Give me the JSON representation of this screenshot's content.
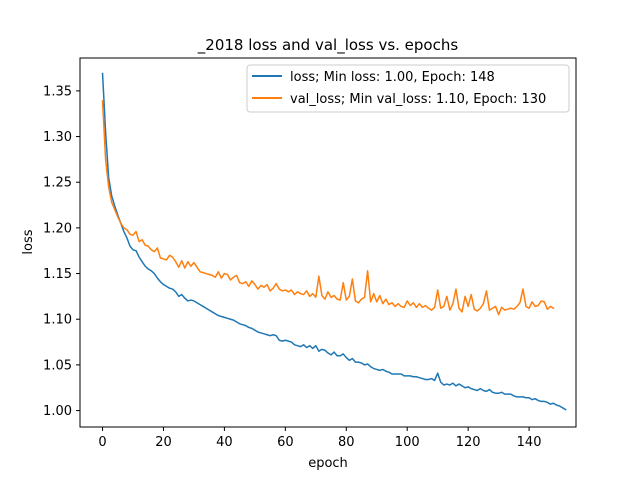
{
  "chart_data": {
    "type": "line",
    "title": "_2018 loss and val_loss vs. epochs",
    "xlabel": "epoch",
    "ylabel": "loss",
    "xlim": [
      -7.4,
      155.4
    ],
    "ylim": [
      0.982,
      1.386
    ],
    "xticks": [
      0,
      20,
      40,
      60,
      80,
      100,
      120,
      140
    ],
    "yticks": [
      1.0,
      1.05,
      1.1,
      1.15,
      1.2,
      1.25,
      1.3,
      1.35
    ],
    "ytick_labels": [
      "1.00",
      "1.05",
      "1.10",
      "1.15",
      "1.20",
      "1.25",
      "1.30",
      "1.35"
    ],
    "grid": false,
    "legend_position": "upper right",
    "series": [
      {
        "name": "loss; Min loss: 1.00, Epoch: 148",
        "color": "#1f77b4",
        "values": [
          1.369,
          1.305,
          1.255,
          1.235,
          1.224,
          1.214,
          1.205,
          1.196,
          1.189,
          1.18,
          1.176,
          1.175,
          1.168,
          1.163,
          1.158,
          1.155,
          1.153,
          1.15,
          1.145,
          1.141,
          1.138,
          1.136,
          1.134,
          1.133,
          1.13,
          1.125,
          1.127,
          1.123,
          1.12,
          1.121,
          1.12,
          1.118,
          1.116,
          1.114,
          1.112,
          1.11,
          1.108,
          1.106,
          1.104,
          1.103,
          1.102,
          1.101,
          1.1,
          1.099,
          1.097,
          1.095,
          1.094,
          1.093,
          1.091,
          1.09,
          1.088,
          1.086,
          1.085,
          1.084,
          1.083,
          1.082,
          1.083,
          1.082,
          1.077,
          1.076,
          1.077,
          1.076,
          1.075,
          1.072,
          1.071,
          1.07,
          1.072,
          1.069,
          1.071,
          1.068,
          1.071,
          1.065,
          1.067,
          1.066,
          1.063,
          1.061,
          1.064,
          1.06,
          1.06,
          1.062,
          1.058,
          1.055,
          1.057,
          1.053,
          1.053,
          1.052,
          1.05,
          1.051,
          1.048,
          1.046,
          1.045,
          1.044,
          1.045,
          1.043,
          1.042,
          1.04,
          1.04,
          1.04,
          1.04,
          1.038,
          1.038,
          1.038,
          1.037,
          1.037,
          1.036,
          1.035,
          1.034,
          1.034,
          1.035,
          1.033,
          1.041,
          1.031,
          1.028,
          1.029,
          1.028,
          1.03,
          1.027,
          1.029,
          1.027,
          1.025,
          1.026,
          1.024,
          1.023,
          1.022,
          1.024,
          1.022,
          1.021,
          1.023,
          1.02,
          1.019,
          1.019,
          1.02,
          1.018,
          1.018,
          1.018,
          1.016,
          1.015,
          1.015,
          1.015,
          1.014,
          1.014,
          1.012,
          1.013,
          1.011,
          1.01,
          1.01,
          1.009,
          1.007,
          1.008,
          1.006,
          1.005,
          1.003,
          1.001
        ]
      },
      {
        "name": "val_loss; Min val_loss: 1.10, Epoch: 130",
        "color": "#ff7f0e",
        "values": [
          1.339,
          1.275,
          1.245,
          1.228,
          1.22,
          1.212,
          1.205,
          1.2,
          1.198,
          1.193,
          1.192,
          1.196,
          1.185,
          1.187,
          1.181,
          1.18,
          1.176,
          1.174,
          1.178,
          1.167,
          1.166,
          1.165,
          1.17,
          1.168,
          1.163,
          1.157,
          1.164,
          1.156,
          1.163,
          1.158,
          1.162,
          1.157,
          1.152,
          1.151,
          1.15,
          1.149,
          1.148,
          1.146,
          1.152,
          1.145,
          1.15,
          1.149,
          1.143,
          1.146,
          1.148,
          1.14,
          1.139,
          1.141,
          1.136,
          1.142,
          1.138,
          1.133,
          1.137,
          1.135,
          1.138,
          1.131,
          1.134,
          1.139,
          1.133,
          1.131,
          1.132,
          1.13,
          1.132,
          1.127,
          1.13,
          1.128,
          1.127,
          1.131,
          1.125,
          1.128,
          1.124,
          1.147,
          1.126,
          1.122,
          1.13,
          1.124,
          1.126,
          1.122,
          1.121,
          1.14,
          1.121,
          1.125,
          1.144,
          1.12,
          1.118,
          1.122,
          1.124,
          1.153,
          1.119,
          1.128,
          1.119,
          1.126,
          1.117,
          1.122,
          1.116,
          1.118,
          1.114,
          1.117,
          1.114,
          1.113,
          1.12,
          1.115,
          1.118,
          1.113,
          1.117,
          1.113,
          1.115,
          1.112,
          1.11,
          1.113,
          1.132,
          1.112,
          1.114,
          1.125,
          1.11,
          1.117,
          1.133,
          1.112,
          1.108,
          1.125,
          1.114,
          1.127,
          1.111,
          1.109,
          1.112,
          1.117,
          1.131,
          1.11,
          1.112,
          1.114,
          1.105,
          1.113,
          1.11,
          1.111,
          1.112,
          1.111,
          1.114,
          1.118,
          1.133,
          1.114,
          1.112,
          1.119,
          1.114,
          1.115,
          1.12,
          1.119,
          1.111,
          1.114,
          1.112
        ]
      }
    ]
  }
}
